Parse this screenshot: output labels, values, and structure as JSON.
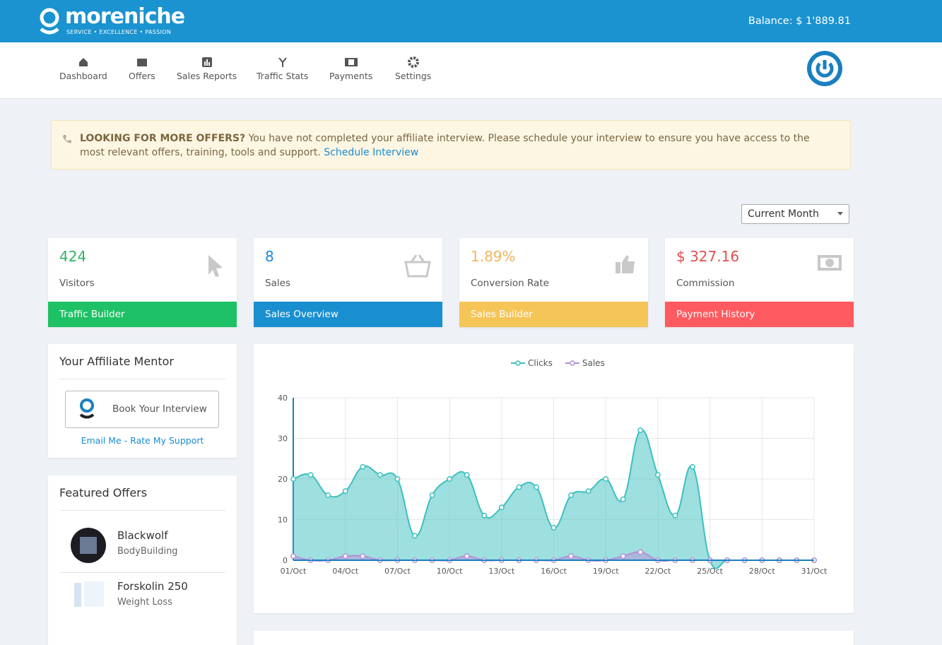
{
  "header": {
    "logo": "moreniche",
    "tagline": "SERVICE • EXCELLENCE • PASSION",
    "balance": "Balance: $ 1'889.81"
  },
  "nav": [
    "Dashboard",
    "Offers",
    "Sales Reports",
    "Traffic Stats",
    "Payments",
    "Settings"
  ],
  "alert": {
    "heading": "LOOKING FOR MORE OFFERS?",
    "text": "You have not completed your affiliate interview. Please schedule your interview to ensure you have access to the most relevant offers, training, tools and support.",
    "link": "Schedule Interview"
  },
  "period": "Current Month",
  "stats": [
    {
      "value": "424",
      "label": "Visitors",
      "footer": "Traffic Builder"
    },
    {
      "value": "8",
      "label": "Sales",
      "footer": "Sales Overview"
    },
    {
      "value": "1.89%",
      "label": "Conversion Rate",
      "footer": "Sales Builder"
    },
    {
      "value": "$ 327.16",
      "label": "Commission",
      "footer": "Payment History"
    }
  ],
  "mentor": {
    "title": "Your Affiliate Mentor",
    "button": "Book Your Interview",
    "links": "Email Me - Rate My Support"
  },
  "featured": {
    "title": "Featured Offers",
    "offers": [
      {
        "name": "Blackwolf",
        "category": "BodyBuilding"
      },
      {
        "name": "Forskolin 250",
        "category": "Weight Loss"
      }
    ]
  },
  "chart_data": {
    "type": "line",
    "categories": [
      "01/Oct",
      null,
      null,
      "04/Oct",
      null,
      null,
      "07/Oct",
      null,
      null,
      "10/Oct",
      null,
      null,
      "13/Oct",
      null,
      null,
      "16/Oct",
      null,
      null,
      "19/Oct",
      null,
      null,
      "22/Oct",
      null,
      null,
      "25/Oct",
      null,
      null,
      "28/Oct",
      null,
      null,
      "31/Oct"
    ],
    "series": [
      {
        "name": "Clicks",
        "color": "#3dbfbf",
        "values": [
          20,
          21,
          16,
          17,
          23,
          21,
          20,
          6,
          16,
          20,
          21,
          11,
          13,
          18,
          18,
          8,
          16,
          17,
          20,
          15,
          32,
          21,
          11,
          23,
          0,
          0,
          0,
          0,
          0,
          0,
          0
        ]
      },
      {
        "name": "Sales",
        "color": "#b48fd8",
        "values": [
          1,
          0,
          0,
          1,
          1,
          0,
          0,
          0,
          0,
          0,
          1,
          0,
          0,
          0,
          0,
          0,
          1,
          0,
          0,
          1,
          2,
          0,
          0,
          0,
          0,
          0,
          0,
          0,
          0,
          0,
          0
        ]
      }
    ],
    "ylim": [
      0,
      40
    ],
    "yticks": [
      0,
      10,
      20,
      30,
      40
    ],
    "grid": true
  }
}
